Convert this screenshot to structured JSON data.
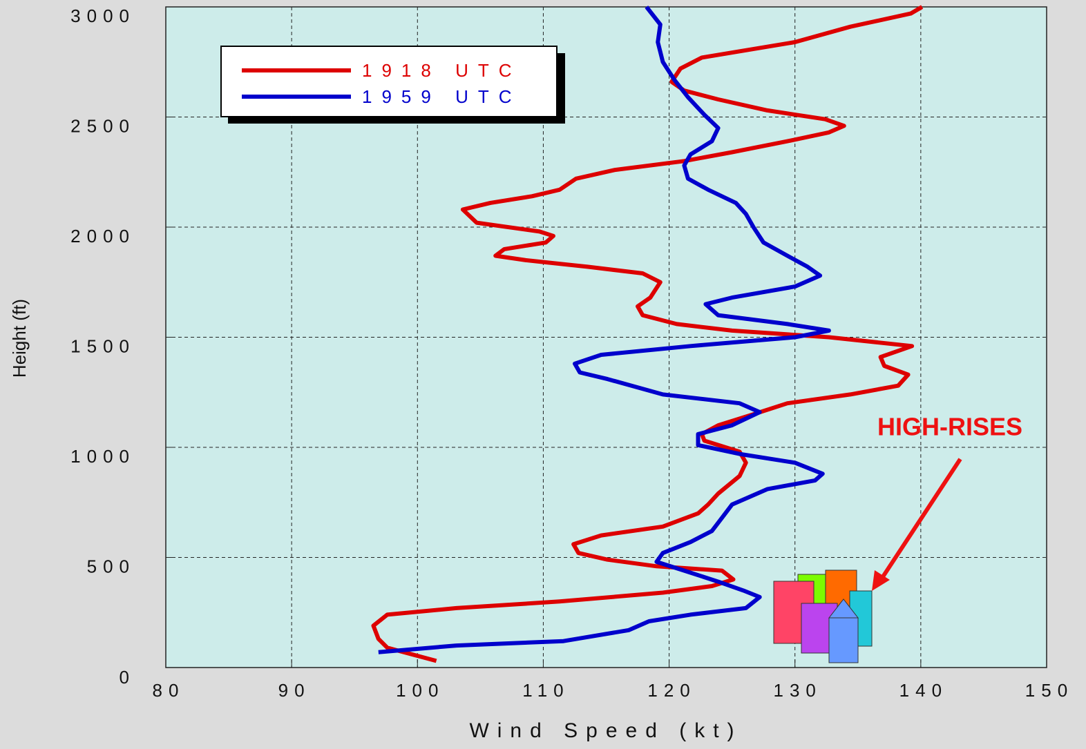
{
  "chart_data": {
    "type": "line",
    "x_label": "Wind Speed (kt)",
    "y_label": "Height (ft)",
    "annotation": "HIGH-RISES",
    "xlim": [
      80,
      150
    ],
    "xticks": [
      80,
      90,
      100,
      110,
      120,
      130,
      140,
      150
    ],
    "ylim": [
      0,
      3000
    ],
    "yticks": [
      0,
      500,
      1000,
      1500,
      2000,
      2500,
      3000
    ],
    "grid": true,
    "legend": "upper left",
    "series": [
      {
        "name": "1918 UTC",
        "color": "#dd0000",
        "y": [
          30,
          90,
          130,
          190,
          240,
          270,
          300,
          340,
          370,
          400,
          440,
          460,
          490,
          520,
          560,
          600,
          640,
          700,
          740,
          790,
          870,
          930,
          980,
          1030,
          1060,
          1100,
          1150,
          1200,
          1240,
          1280,
          1330,
          1370,
          1410,
          1460,
          1500,
          1530,
          1560,
          1600,
          1640,
          1680,
          1750,
          1790,
          1820,
          1850,
          1870,
          1900,
          1930,
          1960,
          1980,
          2020,
          2080,
          2110,
          2140,
          2170,
          2220,
          2260,
          2300,
          2340,
          2390,
          2430,
          2460,
          2490,
          2530,
          2580,
          2620,
          2660,
          2720,
          2770,
          2840,
          2910,
          2970,
          3000
        ],
        "values": [
          101.5,
          97.6,
          96.9,
          96.5,
          97.6,
          103.1,
          111.3,
          119.5,
          123.4,
          125.1,
          124.2,
          119.0,
          115.1,
          112.8,
          112.4,
          114.6,
          119.5,
          122.3,
          123.1,
          123.9,
          125.6,
          126.1,
          125.6,
          122.8,
          122.6,
          123.9,
          126.7,
          129.4,
          134.4,
          138.2,
          139.0,
          137.1,
          136.8,
          139.3,
          132.7,
          125.0,
          120.6,
          117.9,
          117.5,
          118.5,
          119.3,
          117.9,
          113.5,
          108.6,
          106.2,
          106.9,
          110.2,
          110.8,
          109.7,
          104.7,
          103.6,
          105.8,
          109.1,
          111.3,
          112.6,
          115.7,
          121.2,
          125.0,
          129.4,
          132.7,
          133.9,
          132.4,
          127.8,
          123.9,
          121.2,
          120.2,
          120.9,
          122.6,
          130.0,
          134.4,
          139.2,
          140.1
        ]
      },
      {
        "name": "1959 UTC",
        "color": "#0000cc",
        "y": [
          70,
          100,
          120,
          170,
          210,
          240,
          270,
          320,
          350,
          390,
          440,
          480,
          520,
          570,
          620,
          680,
          740,
          810,
          850,
          880,
          930,
          970,
          1010,
          1060,
          1100,
          1160,
          1200,
          1240,
          1310,
          1340,
          1380,
          1420,
          1460,
          1500,
          1530,
          1560,
          1600,
          1650,
          1680,
          1730,
          1780,
          1820,
          1870,
          1930,
          2000,
          2060,
          2110,
          2170,
          2220,
          2280,
          2330,
          2390,
          2450,
          2510,
          2590,
          2670,
          2750,
          2840,
          2920,
          3000
        ],
        "values": [
          96.9,
          103.1,
          111.6,
          116.8,
          118.4,
          121.7,
          126.1,
          127.2,
          125.9,
          123.9,
          121.2,
          119.0,
          119.5,
          121.7,
          123.4,
          124.2,
          125.0,
          127.8,
          131.6,
          132.2,
          130.0,
          125.6,
          122.3,
          122.3,
          125.0,
          127.2,
          125.6,
          119.5,
          115.1,
          112.9,
          112.5,
          114.6,
          121.7,
          130.0,
          132.7,
          129.4,
          123.9,
          122.9,
          125.0,
          130.0,
          132.0,
          131.0,
          129.4,
          127.5,
          126.7,
          126.1,
          125.3,
          123.1,
          121.5,
          121.2,
          121.7,
          123.4,
          123.9,
          122.8,
          121.5,
          120.4,
          119.5,
          119.1,
          119.3,
          118.2
        ]
      }
    ]
  }
}
